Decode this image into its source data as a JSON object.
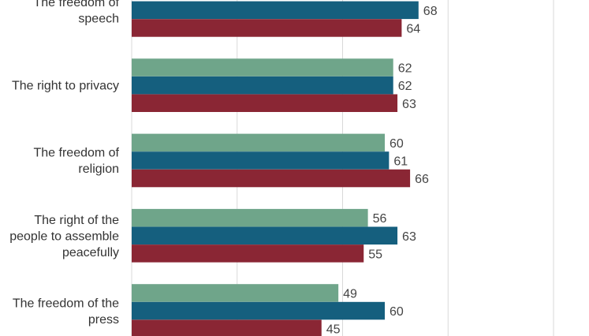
{
  "chart_data": {
    "type": "bar",
    "orientation": "horizontal",
    "categories": [
      [
        "The freedom of",
        "speech"
      ],
      [
        "The right to privacy"
      ],
      [
        "The freedom of",
        "religion"
      ],
      [
        "The right of the",
        "people to assemble",
        "peacefully"
      ],
      [
        "The freedom of the",
        "press"
      ]
    ],
    "series": [
      {
        "color": "#6fa58a",
        "values": [
          null,
          62,
          60,
          56,
          49
        ]
      },
      {
        "color": "#155f7e",
        "values": [
          68,
          62,
          61,
          63,
          60
        ]
      },
      {
        "color": "#8a2634",
        "values": [
          64,
          63,
          66,
          55,
          45
        ]
      }
    ],
    "xlim": [
      0,
      100
    ],
    "grid": true,
    "gridlines": [
      25,
      50,
      75,
      100
    ],
    "legend": "none"
  }
}
